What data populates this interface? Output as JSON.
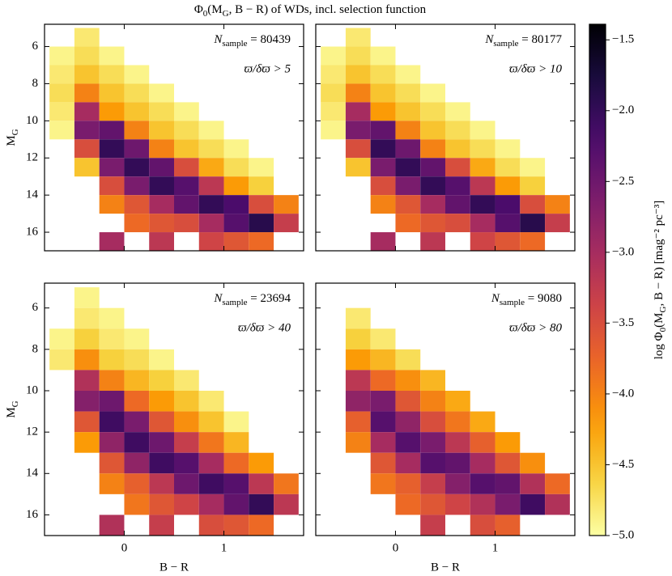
{
  "title_parts": [
    "Φ",
    "0",
    "(M",
    "G",
    ", B − R) of WDs, incl. selection function"
  ],
  "colorbar": {
    "clim": [
      -5.0,
      -1.39
    ],
    "ticks": [
      {
        "value": -1.5,
        "label": "−1.5"
      },
      {
        "value": -2.0,
        "label": "−2.0"
      },
      {
        "value": -2.5,
        "label": "−2.5"
      },
      {
        "value": -3.0,
        "label": "−3.0"
      },
      {
        "value": -3.5,
        "label": "−3.5"
      },
      {
        "value": -4.0,
        "label": "−4.0"
      },
      {
        "value": -4.5,
        "label": "−4.5"
      },
      {
        "value": -5.0,
        "label": "−5.0"
      }
    ],
    "label_parts": [
      "log Φ",
      "0",
      "(M",
      "G",
      ", B − R) [mag⁻² pc⁻³]"
    ],
    "colormap": "inferno_r"
  },
  "chart_data": [
    {
      "type": "heatmap",
      "xlim": [
        -0.8,
        1.8
      ],
      "ylim": [
        17.0,
        4.8
      ],
      "xticks": [
        0,
        1
      ],
      "yticks": [
        6,
        8,
        10,
        12,
        14,
        16
      ],
      "ylabel": [
        "M",
        "G"
      ],
      "annotation": {
        "parts": [
          "N",
          "sample",
          " = "
        ],
        "n": 80439,
        "condition": "ϖ/δϖ > 5"
      },
      "xbins": [
        -0.75,
        -0.5,
        -0.25,
        0,
        0.25,
        0.5,
        0.75,
        1.0,
        1.25,
        1.5,
        1.75
      ],
      "ybins": [
        5,
        6,
        7,
        8,
        9,
        10,
        11,
        12,
        13,
        14,
        15,
        16,
        17
      ],
      "values": [
        [
          null,
          -4.8,
          null,
          null,
          null,
          null,
          null,
          null,
          null,
          null
        ],
        [
          -4.9,
          -4.7,
          -4.9,
          null,
          null,
          null,
          null,
          null,
          null,
          null
        ],
        [
          -4.8,
          -4.5,
          -4.7,
          -4.9,
          null,
          null,
          null,
          null,
          null,
          null
        ],
        [
          -4.7,
          -4.0,
          -4.5,
          -4.7,
          -4.9,
          null,
          null,
          null,
          null,
          null
        ],
        [
          -4.8,
          -3.0,
          -4.2,
          -4.5,
          -4.7,
          -4.9,
          null,
          null,
          null,
          null
        ],
        [
          -4.9,
          -2.6,
          -2.4,
          -4.0,
          -4.5,
          -4.7,
          -4.9,
          null,
          null,
          null
        ],
        [
          null,
          -3.5,
          -2.0,
          -2.5,
          -4.0,
          -4.5,
          -4.7,
          -4.9,
          null,
          null
        ],
        [
          null,
          -4.5,
          -2.6,
          -2.0,
          -2.4,
          -3.5,
          -4.3,
          -4.7,
          -4.9,
          null
        ],
        [
          null,
          null,
          -3.5,
          -2.6,
          -2.0,
          -2.3,
          -3.2,
          -4.2,
          -4.6,
          null
        ],
        [
          null,
          null,
          -4.0,
          -3.6,
          -3.0,
          -2.4,
          -2.0,
          -2.2,
          -3.5,
          -4.0
        ],
        [
          null,
          null,
          null,
          -3.8,
          -3.6,
          -3.5,
          -3.0,
          -2.3,
          -1.9,
          -3.3
        ],
        [
          null,
          null,
          -3.0,
          null,
          -3.2,
          null,
          -3.4,
          -3.6,
          -3.8,
          null
        ]
      ]
    },
    {
      "type": "heatmap",
      "xlim": [
        -0.8,
        1.8
      ],
      "ylim": [
        17.0,
        4.8
      ],
      "xticks": [
        0,
        1
      ],
      "yticks": [
        6,
        8,
        10,
        12,
        14,
        16
      ],
      "annotation": {
        "parts": [
          "N",
          "sample",
          " = "
        ],
        "n": 80177,
        "condition": "ϖ/δϖ > 10"
      },
      "xbins": [
        -0.75,
        -0.5,
        -0.25,
        0,
        0.25,
        0.5,
        0.75,
        1.0,
        1.25,
        1.5,
        1.75
      ],
      "ybins": [
        5,
        6,
        7,
        8,
        9,
        10,
        11,
        12,
        13,
        14,
        15,
        16,
        17
      ],
      "values": [
        [
          null,
          -4.8,
          null,
          null,
          null,
          null,
          null,
          null,
          null,
          null
        ],
        [
          -4.9,
          -4.7,
          -4.9,
          null,
          null,
          null,
          null,
          null,
          null,
          null
        ],
        [
          -4.8,
          -4.5,
          -4.7,
          -4.9,
          null,
          null,
          null,
          null,
          null,
          null
        ],
        [
          -4.7,
          -4.0,
          -4.5,
          -4.7,
          -4.9,
          null,
          null,
          null,
          null,
          null
        ],
        [
          -4.8,
          -3.0,
          -4.2,
          -4.5,
          -4.7,
          -4.9,
          null,
          null,
          null,
          null
        ],
        [
          -4.9,
          -2.6,
          -2.4,
          -4.0,
          -4.5,
          -4.7,
          -4.9,
          null,
          null,
          null
        ],
        [
          null,
          -3.5,
          -2.0,
          -2.5,
          -4.0,
          -4.5,
          -4.7,
          -4.9,
          null,
          null
        ],
        [
          null,
          -4.5,
          -2.6,
          -2.0,
          -2.4,
          -3.5,
          -4.3,
          -4.7,
          -4.9,
          null
        ],
        [
          null,
          null,
          -3.5,
          -2.6,
          -2.0,
          -2.3,
          -3.2,
          -4.2,
          -4.6,
          null
        ],
        [
          null,
          null,
          -4.0,
          -3.6,
          -3.0,
          -2.4,
          -2.0,
          -2.2,
          -3.5,
          -4.0
        ],
        [
          null,
          null,
          null,
          -3.8,
          -3.6,
          -3.5,
          -3.0,
          -2.3,
          -1.9,
          -3.3
        ],
        [
          null,
          null,
          -3.0,
          null,
          -3.2,
          null,
          -3.4,
          -3.6,
          -3.8,
          null
        ]
      ]
    },
    {
      "type": "heatmap",
      "xlim": [
        -0.8,
        1.8
      ],
      "ylim": [
        17.0,
        4.8
      ],
      "xticks": [
        0,
        1
      ],
      "yticks": [
        6,
        8,
        10,
        12,
        14,
        16
      ],
      "xlabel": "B − R",
      "ylabel": [
        "M",
        "G"
      ],
      "annotation": {
        "parts": [
          "N",
          "sample",
          " = "
        ],
        "n": 23694,
        "condition": "ϖ/δϖ > 40"
      },
      "xbins": [
        -0.75,
        -0.5,
        -0.25,
        0,
        0.25,
        0.5,
        0.75,
        1.0,
        1.25,
        1.5,
        1.75
      ],
      "ybins": [
        5,
        6,
        7,
        8,
        9,
        10,
        11,
        12,
        13,
        14,
        15,
        16,
        17
      ],
      "values": [
        [
          null,
          -4.9,
          null,
          null,
          null,
          null,
          null,
          null,
          null,
          null
        ],
        [
          null,
          -4.8,
          -4.9,
          null,
          null,
          null,
          null,
          null,
          null,
          null
        ],
        [
          -4.9,
          -4.6,
          -4.8,
          -4.9,
          null,
          null,
          null,
          null,
          null,
          null
        ],
        [
          -4.8,
          -4.1,
          -4.6,
          -4.7,
          -4.9,
          null,
          null,
          null,
          null,
          null
        ],
        [
          null,
          -3.1,
          -4.0,
          -4.4,
          -4.6,
          -4.8,
          null,
          null,
          null,
          null
        ],
        [
          null,
          -2.7,
          -2.5,
          -3.8,
          -4.2,
          -4.5,
          -4.8,
          null,
          null,
          null
        ],
        [
          null,
          -3.6,
          -2.1,
          -2.6,
          -3.6,
          -4.1,
          -4.5,
          -4.9,
          null,
          null
        ],
        [
          null,
          -4.2,
          -2.8,
          -2.1,
          -2.5,
          -3.3,
          -3.9,
          -4.4,
          null,
          null
        ],
        [
          null,
          null,
          -3.6,
          -2.8,
          -2.1,
          -2.3,
          -3.0,
          -3.8,
          -4.2,
          null
        ],
        [
          null,
          null,
          -4.0,
          -3.7,
          -3.2,
          -2.5,
          -2.1,
          -2.3,
          -3.2,
          -3.9
        ],
        [
          null,
          null,
          null,
          -3.9,
          -3.6,
          -3.4,
          -3.0,
          -2.4,
          -2.0,
          -3.2
        ],
        [
          null,
          null,
          -3.1,
          null,
          -3.3,
          null,
          -3.5,
          -3.6,
          -3.8,
          null
        ]
      ]
    },
    {
      "type": "heatmap",
      "xlim": [
        -0.8,
        1.8
      ],
      "ylim": [
        17.0,
        4.8
      ],
      "xticks": [
        0,
        1
      ],
      "yticks": [
        6,
        8,
        10,
        12,
        14,
        16
      ],
      "xlabel": "B − R",
      "annotation": {
        "parts": [
          "N",
          "sample",
          " = "
        ],
        "n": 9080,
        "condition": "ϖ/δϖ > 80"
      },
      "xbins": [
        -0.75,
        -0.5,
        -0.25,
        0,
        0.25,
        0.5,
        0.75,
        1.0,
        1.25,
        1.5,
        1.75
      ],
      "ybins": [
        5,
        6,
        7,
        8,
        9,
        10,
        11,
        12,
        13,
        14,
        15,
        16,
        17
      ],
      "values": [
        [
          null,
          null,
          null,
          null,
          null,
          null,
          null,
          null,
          null,
          null
        ],
        [
          null,
          -4.8,
          null,
          null,
          null,
          null,
          null,
          null,
          null,
          null
        ],
        [
          null,
          -4.6,
          -4.8,
          null,
          null,
          null,
          null,
          null,
          null,
          null
        ],
        [
          null,
          -4.2,
          -4.4,
          -4.7,
          null,
          null,
          null,
          null,
          null,
          null
        ],
        [
          null,
          -3.2,
          -3.8,
          -4.1,
          -4.4,
          null,
          null,
          null,
          null,
          null
        ],
        [
          null,
          -2.8,
          -2.6,
          -3.6,
          -4.0,
          -4.3,
          null,
          null,
          null,
          null
        ],
        [
          null,
          -3.7,
          -2.3,
          -2.8,
          -3.5,
          -3.9,
          -4.3,
          null,
          null,
          null
        ],
        [
          null,
          -4.0,
          -3.0,
          -2.3,
          -2.6,
          -3.2,
          -3.7,
          -4.2,
          null,
          null
        ],
        [
          null,
          null,
          -3.6,
          -3.0,
          -2.3,
          -2.4,
          -3.0,
          -3.6,
          -4.1,
          null
        ],
        [
          null,
          null,
          -3.9,
          -3.7,
          -3.3,
          -2.7,
          -2.3,
          -2.4,
          -3.1,
          -3.8
        ],
        [
          null,
          null,
          null,
          -3.8,
          -3.6,
          -3.4,
          -3.1,
          -2.6,
          -2.1,
          -3.1
        ],
        [
          null,
          null,
          null,
          null,
          -3.3,
          null,
          -3.5,
          -3.7,
          null,
          null
        ]
      ]
    }
  ]
}
